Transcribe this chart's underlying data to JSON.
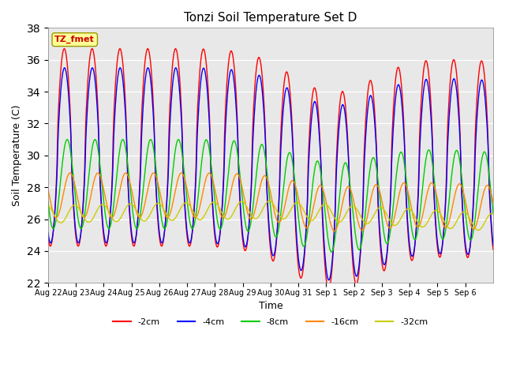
{
  "title": "Tonzi Soil Temperature Set D",
  "xlabel": "Time",
  "ylabel": "Soil Temperature (C)",
  "ylim": [
    22,
    38
  ],
  "yticks": [
    22,
    24,
    26,
    28,
    30,
    32,
    34,
    36,
    38
  ],
  "legend_entries": [
    "-2cm",
    "-4cm",
    "-8cm",
    "-16cm",
    "-32cm"
  ],
  "line_colors": [
    "#ff0000",
    "#0000ff",
    "#00cc00",
    "#ff8800",
    "#cccc00"
  ],
  "background_color": "#e8e8e8",
  "annotation_text": "TZ_fmet",
  "annotation_color": "#cc0000",
  "annotation_bg": "#ffff99",
  "tick_labels": [
    "Aug 22",
    "Aug 23",
    "Aug 24",
    "Aug 25",
    "Aug 26",
    "Aug 27",
    "Aug 28",
    "Aug 29",
    "Aug 30",
    "Aug 31",
    "Sep 1",
    "Sep 2",
    "Sep 3",
    "Sep 4",
    "Sep 5",
    "Sep 6"
  ]
}
